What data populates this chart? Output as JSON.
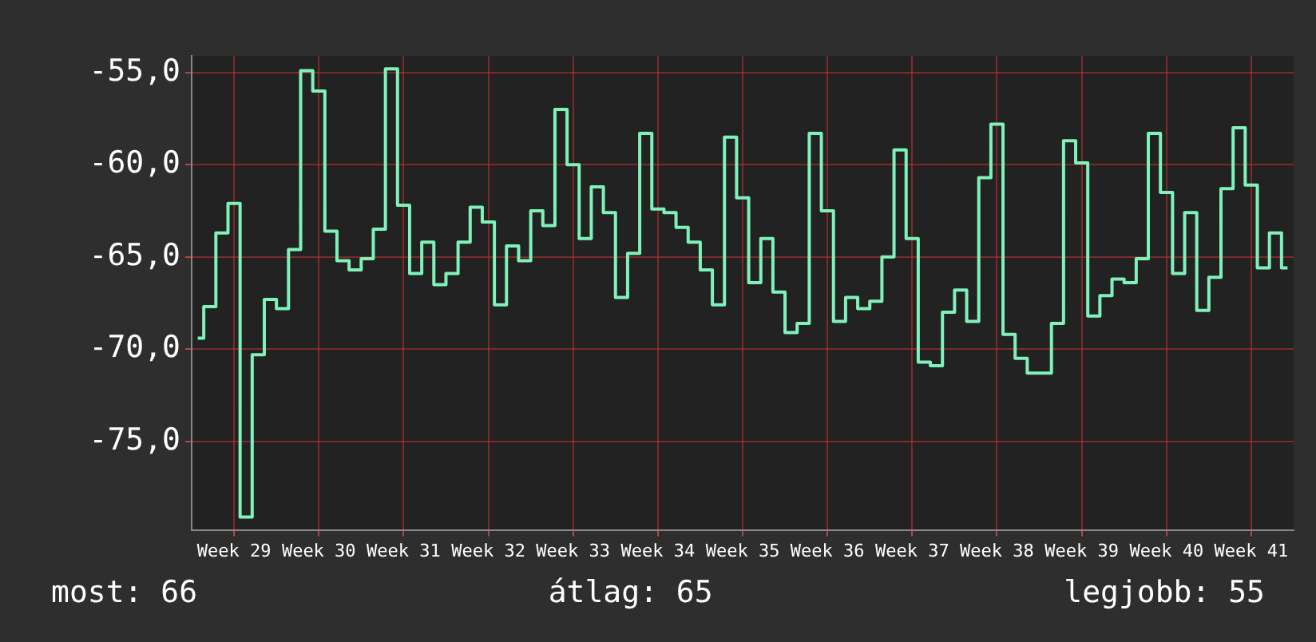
{
  "chart_data": {
    "type": "step",
    "categories": [
      null,
      null,
      null,
      "Week 29",
      null,
      null,
      null,
      null,
      null,
      null,
      "Week 30",
      null,
      null,
      null,
      null,
      null,
      null,
      "Week 31",
      null,
      null,
      null,
      null,
      null,
      null,
      "Week 32",
      null,
      null,
      null,
      null,
      null,
      null,
      "Week 33",
      null,
      null,
      null,
      null,
      null,
      null,
      "Week 34",
      null,
      null,
      null,
      null,
      null,
      null,
      "Week 35",
      null,
      null,
      null,
      null,
      null,
      null,
      "Week 36",
      null,
      null,
      null,
      null,
      null,
      null,
      "Week 37",
      null,
      null,
      null,
      null,
      null,
      null,
      "Week 38",
      null,
      null,
      null,
      null,
      null,
      null,
      "Week 39",
      null,
      null,
      null,
      null,
      null,
      null,
      "Week 40",
      null,
      null,
      null,
      null,
      null,
      null,
      "Week 41",
      null,
      null,
      null
    ],
    "series": [
      {
        "color": "#7ff2b9",
        "values": [
          -69.4,
          -67.7,
          -63.7,
          -62.1,
          -79.1,
          -70.3,
          -67.3,
          -67.8,
          -64.6,
          -54.9,
          -56.0,
          -63.6,
          -65.2,
          -65.7,
          -65.1,
          -63.5,
          -54.8,
          -62.2,
          -65.9,
          -64.2,
          -66.5,
          -65.9,
          -64.2,
          -62.3,
          -63.1,
          -67.6,
          -64.4,
          -65.2,
          -62.5,
          -63.3,
          -57.0,
          -60.0,
          -64.0,
          -61.2,
          -62.6,
          -67.2,
          -64.8,
          -58.3,
          -62.4,
          -62.6,
          -63.4,
          -64.2,
          -65.7,
          -67.6,
          -58.5,
          -61.8,
          -66.4,
          -64.0,
          -66.9,
          -69.1,
          -68.6,
          -58.3,
          -62.5,
          -68.5,
          -67.2,
          -67.8,
          -67.4,
          -65.0,
          -59.2,
          -64.0,
          -70.7,
          -70.9,
          -68.0,
          -66.8,
          -68.5,
          -60.7,
          -57.8,
          -69.2,
          -70.5,
          -71.3,
          -71.3,
          -68.6,
          -58.7,
          -59.9,
          -68.2,
          -67.1,
          -66.2,
          -66.4,
          -65.1,
          -58.3,
          -61.5,
          -65.9,
          -62.6,
          -67.9,
          -66.1,
          -61.3,
          -58.0,
          -61.1,
          -65.6,
          -63.7,
          -65.6
        ]
      }
    ],
    "ylim": [
      -79.8,
      -54.1
    ],
    "yticks": [
      {
        "value": -75,
        "label": "-75,0"
      },
      {
        "value": -70,
        "label": "-70,0"
      },
      {
        "value": -65,
        "label": "-65,0"
      },
      {
        "value": -60,
        "label": "-60,0"
      },
      {
        "value": -55,
        "label": "-55,0"
      }
    ],
    "grid": true,
    "legend": false,
    "marker": "none",
    "line_style": "solid",
    "annotations": [
      "most: 66",
      "átlag: 65",
      "legjobb: 55"
    ]
  }
}
